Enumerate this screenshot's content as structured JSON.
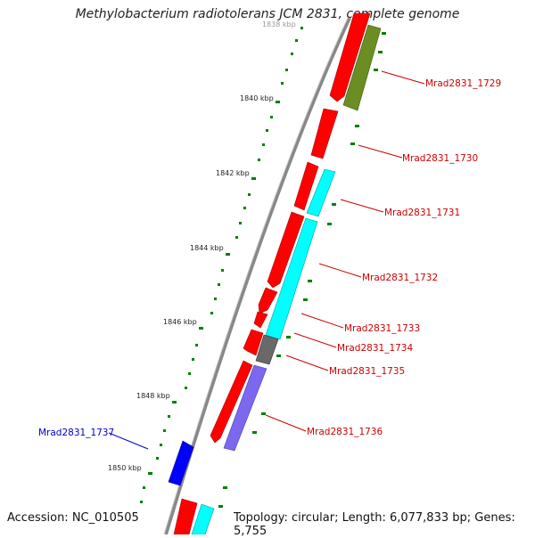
{
  "title": "Methylobacterium radiotolerans JCM 2831, complete genome",
  "footer": {
    "accession": "Accession: NC_010505",
    "summary": "Topology: circular; Length: 6,077,833 bp; Genes: 5,755"
  },
  "ruler_labels": [
    "1838 kbp",
    "1840 kbp",
    "1842 kbp",
    "1844 kbp",
    "1846 kbp",
    "1848 kbp",
    "1850 kbp"
  ],
  "gene_labels": [
    {
      "text": "Mrad2831_1729",
      "color": "#cc0000"
    },
    {
      "text": "Mrad2831_1730",
      "color": "#cc0000"
    },
    {
      "text": "Mrad2831_1731",
      "color": "#cc0000"
    },
    {
      "text": "Mrad2831_1732",
      "color": "#cc0000"
    },
    {
      "text": "Mrad2831_1733",
      "color": "#cc0000"
    },
    {
      "text": "Mrad2831_1734",
      "color": "#cc0000"
    },
    {
      "text": "Mrad2831_1735",
      "color": "#cc0000"
    },
    {
      "text": "Mrad2831_1736",
      "color": "#cc0000"
    },
    {
      "text": "Mrad2831_1737",
      "color": "#0000cc"
    }
  ],
  "feature_colors": {
    "cds": "#ff0000",
    "cog_olive": "#6b8e23",
    "cog_cyan": "#00ffff",
    "cog_gray": "#696969",
    "cog_purple": "#7b68ee",
    "cog_blue": "#0000ff",
    "backbone": "#888888",
    "tick": "#008000"
  }
}
